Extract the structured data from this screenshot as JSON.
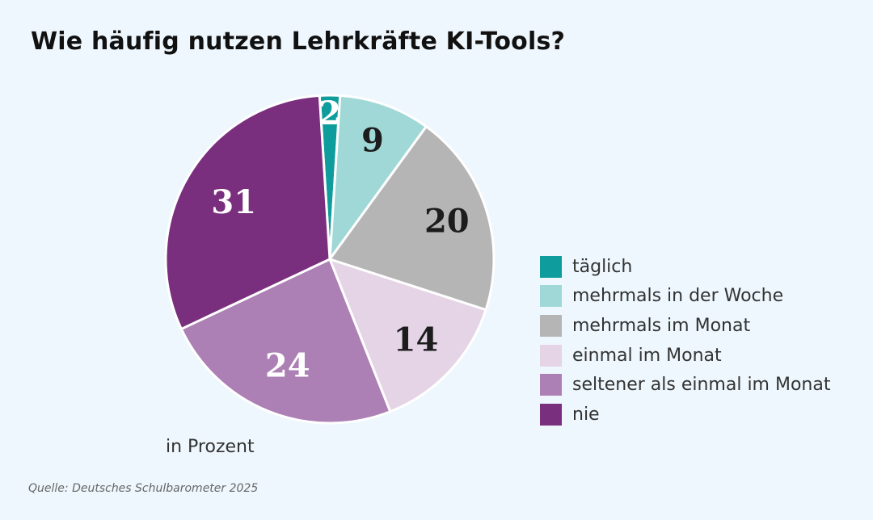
{
  "title": "Wie häufig nutzen Lehrkräfte KI-Tools?",
  "unit_note": "in Prozent",
  "source": "Quelle: Deutsches Schulbarometer 2025",
  "chart_data": {
    "type": "pie",
    "title": "Wie häufig nutzen Lehrkräfte KI-Tools?",
    "unit": "in Prozent",
    "legend_position": "right",
    "start_angle_deg": -3.6,
    "direction": "clockwise",
    "slices": [
      {
        "label": "täglich",
        "value": 2,
        "color": "#0f9c9c",
        "text_color": "#ffffff"
      },
      {
        "label": "mehrmals in der Woche",
        "value": 9,
        "color": "#9fd8d6",
        "text_color": "#1c1c1c"
      },
      {
        "label": "mehrmals im Monat",
        "value": 20,
        "color": "#b5b5b5",
        "text_color": "#1c1c1c"
      },
      {
        "label": "einmal im Monat",
        "value": 14,
        "color": "#e5d4e6",
        "text_color": "#1c1c1c"
      },
      {
        "label": "seltener als einmal im Monat",
        "value": 24,
        "color": "#ad80b5",
        "text_color": "#ffffff"
      },
      {
        "label": "nie",
        "value": 31,
        "color": "#7a2e7e",
        "text_color": "#ffffff"
      }
    ]
  }
}
